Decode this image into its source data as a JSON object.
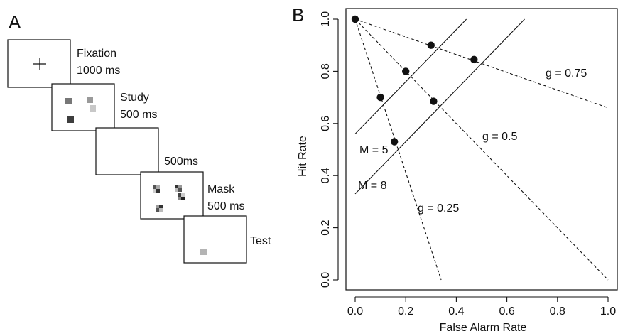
{
  "panel_a": {
    "label": "A",
    "screens": [
      {
        "name": "fixation",
        "lines": [
          "Fixation",
          "1000 ms"
        ],
        "symbol": "+"
      },
      {
        "name": "study",
        "lines": [
          "Study",
          "500 ms"
        ],
        "squares": [
          {
            "shade": "#777777"
          },
          {
            "shade": "#9a9a9a"
          },
          {
            "shade": "#c8c8c8"
          },
          {
            "shade": "#3e3e3e"
          }
        ]
      },
      {
        "name": "blank",
        "lines": [
          "500ms"
        ]
      },
      {
        "name": "mask",
        "lines": [
          "Mask",
          "500 ms"
        ]
      },
      {
        "name": "test",
        "lines": [
          "Test"
        ],
        "squares": [
          {
            "shade": "#b4b4b4"
          }
        ]
      }
    ]
  },
  "panel_b": {
    "label": "B",
    "xlabel": "False Alarm Rate",
    "ylabel": "Hit Rate",
    "annotations": {
      "m5": "M = 5",
      "m8": "M = 8",
      "g025": "g = 0.25",
      "g05": "g = 0.5",
      "g075": "g = 0.75"
    }
  },
  "chart_data": {
    "type": "line",
    "xlabel": "False Alarm Rate",
    "ylabel": "Hit Rate",
    "xlim": [
      0,
      1
    ],
    "ylim": [
      0,
      1
    ],
    "xticks": [
      "0.0",
      "0.2",
      "0.4",
      "0.6",
      "0.8",
      "1.0"
    ],
    "yticks": [
      "0.0",
      "0.2",
      "0.4",
      "0.6",
      "0.8",
      "1.0"
    ],
    "grid": false,
    "series": [
      {
        "name": "M = 5",
        "style": "solid",
        "points": [
          [
            0,
            0.56
          ],
          [
            0.44,
            1.0
          ]
        ]
      },
      {
        "name": "M = 8",
        "style": "solid",
        "points": [
          [
            0,
            0.33
          ],
          [
            0.67,
            1.0
          ]
        ]
      },
      {
        "name": "g = 0.25",
        "style": "dashed",
        "points": [
          [
            0,
            1.0
          ],
          [
            0.34,
            0.0
          ]
        ]
      },
      {
        "name": "g = 0.5",
        "style": "dashed",
        "points": [
          [
            0,
            1.0
          ],
          [
            1.0,
            0.0
          ]
        ]
      },
      {
        "name": "g = 0.75",
        "style": "dashed",
        "points": [
          [
            0,
            1.0
          ],
          [
            1.0,
            0.66
          ]
        ]
      },
      {
        "name": "Points",
        "style": "markers",
        "points": [
          [
            0.0,
            1.0
          ],
          [
            0.1,
            0.7
          ],
          [
            0.2,
            0.8
          ],
          [
            0.3,
            0.9
          ],
          [
            0.155,
            0.53
          ],
          [
            0.31,
            0.685
          ],
          [
            0.47,
            0.845
          ]
        ]
      }
    ]
  }
}
